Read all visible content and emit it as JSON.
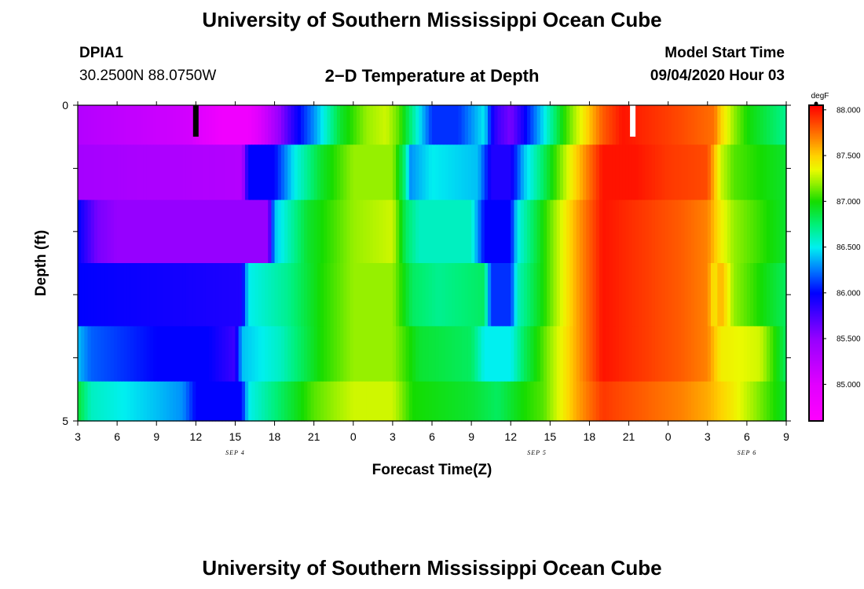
{
  "header": {
    "title": "University of Southern Mississippi Ocean Cube",
    "station": "DPIA1",
    "coords": "30.2500N 88.0750W",
    "subtitle": "2−D Temperature at Depth",
    "start_label": "Model Start Time",
    "start_value": "09/04/2020 Hour 03"
  },
  "footer": {
    "title": "University of Southern Mississippi Ocean Cube"
  },
  "chart_data": {
    "type": "heatmap",
    "xlabel": "Forecast Time(Z)",
    "ylabel": "Depth (ft)",
    "x_tick_labels": [
      "3",
      "6",
      "9",
      "12",
      "15",
      "18",
      "21",
      "0",
      "3",
      "6",
      "9",
      "12",
      "15",
      "18",
      "21",
      "0",
      "3",
      "6",
      "9"
    ],
    "date_labels": [
      {
        "label": "SEP 4",
        "at_hour": 12
      },
      {
        "label": "SEP 5",
        "at_hour": 35
      },
      {
        "label": "SEP 6",
        "at_hour": 51
      }
    ],
    "x_range_hours": [
      0,
      54
    ],
    "ylim": [
      0,
      5
    ],
    "y_tick_labels": [
      "0",
      "5"
    ],
    "depth_levels_ft": [
      0.25,
      1.0,
      2.0,
      3.0,
      4.0,
      4.75
    ],
    "colorbar": {
      "unit": "degF",
      "min": 84.6,
      "max": 88.05,
      "ticks": [
        "85.000",
        "85.500",
        "86.000",
        "86.500",
        "87.000",
        "87.500",
        "88.000"
      ],
      "tick_values": [
        85.0,
        85.5,
        86.0,
        86.5,
        87.0,
        87.5,
        88.0
      ]
    },
    "time_markers": [
      {
        "hour": 9,
        "color": "#000000"
      },
      {
        "hour": 42.3,
        "color": "#ffffff"
      }
    ],
    "value_profiles_degF": [
      [
        [
          0,
          85.3
        ],
        [
          8.5,
          85.1
        ],
        [
          11,
          84.8
        ],
        [
          13,
          84.8
        ],
        [
          14.5,
          85.2
        ],
        [
          16.5,
          85.9
        ],
        [
          18,
          86.3
        ],
        [
          20,
          86.9
        ],
        [
          22,
          87.2
        ],
        [
          23.5,
          87.3
        ],
        [
          24.5,
          87.1
        ],
        [
          26,
          86.5
        ],
        [
          27,
          86.1
        ],
        [
          29,
          86.1
        ],
        [
          31,
          86.5
        ],
        [
          31.5,
          86.0
        ],
        [
          32,
          85.8
        ],
        [
          33,
          85.6
        ],
        [
          35,
          86.3
        ],
        [
          37,
          87.0
        ],
        [
          38.5,
          87.4
        ],
        [
          40,
          87.8
        ],
        [
          41.5,
          88.0
        ],
        [
          43,
          87.95
        ],
        [
          46,
          87.85
        ],
        [
          48.5,
          87.75
        ],
        [
          49,
          87.5
        ],
        [
          50,
          87.2
        ],
        [
          51,
          87.0
        ],
        [
          54,
          86.7
        ]
      ],
      [
        [
          0,
          85.4
        ],
        [
          12.5,
          85.3
        ],
        [
          13,
          86.0
        ],
        [
          15,
          86.0
        ],
        [
          16.5,
          86.5
        ],
        [
          18.5,
          86.9
        ],
        [
          21,
          87.2
        ],
        [
          24,
          87.2
        ],
        [
          25,
          86.7
        ],
        [
          25.3,
          86.3
        ],
        [
          27,
          86.5
        ],
        [
          30.5,
          86.4
        ],
        [
          31.5,
          85.9
        ],
        [
          33,
          85.9
        ],
        [
          34,
          86.4
        ],
        [
          35.5,
          86.8
        ],
        [
          38,
          87.5
        ],
        [
          40,
          88.0
        ],
        [
          42.5,
          88.0
        ],
        [
          45,
          87.9
        ],
        [
          48,
          87.85
        ],
        [
          49,
          87.3
        ],
        [
          50,
          87.1
        ],
        [
          54,
          86.9
        ]
      ],
      [
        [
          0,
          86.0
        ],
        [
          1.5,
          85.6
        ],
        [
          3,
          85.5
        ],
        [
          12,
          85.5
        ],
        [
          14.5,
          85.5
        ],
        [
          15,
          86.4
        ],
        [
          17.5,
          86.9
        ],
        [
          21,
          87.2
        ],
        [
          24,
          87.3
        ],
        [
          25,
          86.8
        ],
        [
          26,
          86.6
        ],
        [
          30,
          86.6
        ],
        [
          31,
          86.0
        ],
        [
          33,
          86.0
        ],
        [
          33.5,
          86.5
        ],
        [
          35.5,
          87.0
        ],
        [
          38,
          87.6
        ],
        [
          40,
          88.0
        ],
        [
          46,
          87.8
        ],
        [
          48,
          87.7
        ],
        [
          49,
          87.4
        ],
        [
          50,
          87.2
        ],
        [
          54,
          86.9
        ]
      ],
      [
        [
          0,
          86.0
        ],
        [
          12.5,
          85.9
        ],
        [
          13,
          86.5
        ],
        [
          16,
          86.7
        ],
        [
          18.5,
          87.0
        ],
        [
          21,
          87.2
        ],
        [
          24,
          87.2
        ],
        [
          25.5,
          86.8
        ],
        [
          27.5,
          86.7
        ],
        [
          31,
          86.8
        ],
        [
          31.5,
          86.1
        ],
        [
          33,
          86.1
        ],
        [
          33.5,
          86.6
        ],
        [
          35.5,
          87.0
        ],
        [
          38,
          87.6
        ],
        [
          40,
          88.0
        ],
        [
          46,
          87.8
        ],
        [
          48,
          87.7
        ],
        [
          48.5,
          87.4
        ],
        [
          49,
          87.6
        ],
        [
          50,
          87.2
        ],
        [
          54,
          86.8
        ]
      ],
      [
        [
          0,
          86.4
        ],
        [
          1,
          86.2
        ],
        [
          6,
          86.0
        ],
        [
          10,
          86.0
        ],
        [
          12,
          85.8
        ],
        [
          12.5,
          86.4
        ],
        [
          15.5,
          86.6
        ],
        [
          18.5,
          87.0
        ],
        [
          21,
          87.2
        ],
        [
          24,
          87.2
        ],
        [
          26,
          86.9
        ],
        [
          30,
          86.8
        ],
        [
          31,
          86.5
        ],
        [
          33,
          86.5
        ],
        [
          34,
          86.8
        ],
        [
          35.5,
          87.1
        ],
        [
          38,
          87.6
        ],
        [
          40,
          88.0
        ],
        [
          46,
          87.8
        ],
        [
          48,
          87.7
        ],
        [
          49,
          87.4
        ],
        [
          52,
          87.3
        ],
        [
          54,
          86.8
        ]
      ],
      [
        [
          0,
          86.9
        ],
        [
          1,
          86.6
        ],
        [
          6,
          86.4
        ],
        [
          8,
          86.3
        ],
        [
          9,
          86.0
        ],
        [
          12.5,
          86.0
        ],
        [
          13,
          86.5
        ],
        [
          15.5,
          86.8
        ],
        [
          18,
          87.1
        ],
        [
          21,
          87.3
        ],
        [
          24,
          87.3
        ],
        [
          25.5,
          87.0
        ],
        [
          30,
          86.9
        ],
        [
          32,
          86.8
        ],
        [
          34,
          87.0
        ],
        [
          35.5,
          87.1
        ],
        [
          38,
          87.6
        ],
        [
          40,
          87.9
        ],
        [
          46,
          87.7
        ],
        [
          48,
          87.6
        ],
        [
          50,
          87.4
        ],
        [
          54,
          86.9
        ]
      ]
    ]
  }
}
